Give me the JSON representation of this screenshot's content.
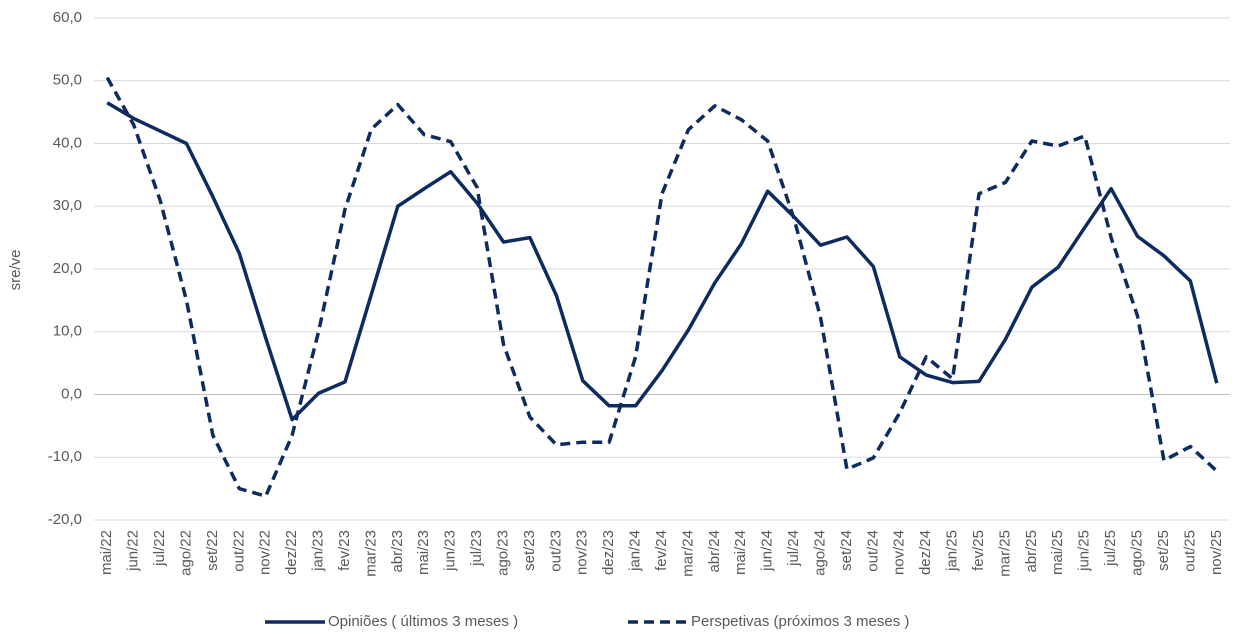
{
  "chart_data": {
    "type": "line",
    "y_label": "sre/ve",
    "categories": [
      "mai/22",
      "jun/22",
      "jul/22",
      "ago/22",
      "set/22",
      "out/22",
      "nov/22",
      "dez/22",
      "jan/23",
      "fev/23",
      "mar/23",
      "abr/23",
      "mai/23",
      "jun/23",
      "jul/23",
      "ago/23",
      "set/23",
      "out/23",
      "nov/23",
      "dez/23",
      "jan/24",
      "fev/24",
      "mar/24",
      "abr/24",
      "mai/24",
      "jun/24",
      "jul/24",
      "ago/24",
      "set/24",
      "out/24",
      "nov/24",
      "dez/24",
      "jan/25",
      "fev/25",
      "mar/25",
      "abr/25",
      "mai/25",
      "jun/25",
      "jul/25",
      "ago/25",
      "set/25",
      "out/25",
      "nov/25"
    ],
    "series": [
      {
        "name": "Opiniões ( últimos 3 meses )",
        "color": "#0d2b5e",
        "line_style": "solid",
        "values": [
          46.5,
          44,
          42,
          40,
          31.5,
          22.5,
          9,
          -4,
          0.2,
          2,
          16,
          30,
          32.8,
          35.5,
          30.5,
          24.3,
          25,
          15.8,
          2.2,
          -1.8,
          -1.8,
          3.8,
          10.3,
          17.8,
          24,
          32.4,
          28.3,
          23.8,
          25.1,
          20.4,
          6,
          3.1,
          1.9,
          2.1,
          8.8,
          17.1,
          20.3,
          26.6,
          32.8,
          25.2,
          22.1,
          18.1,
          1.8
        ]
      },
      {
        "name": "Perspetivas (próximos 3 meses )",
        "color": "#0d2b5e",
        "line_style": "dashed",
        "values": [
          50.5,
          43,
          31,
          15,
          -6.5,
          -15,
          -16.2,
          -6.5,
          10,
          29.5,
          42.3,
          46.2,
          41.4,
          40.3,
          33,
          8,
          -3.6,
          -8,
          -7.6,
          -7.6,
          6,
          32,
          42.2,
          46,
          43.8,
          40.4,
          28,
          12.3,
          -11.9,
          -10.1,
          -2.9,
          6,
          2.5,
          32,
          33.8,
          40.4,
          39.6,
          41.2,
          25,
          12.5,
          -10.5,
          -8.3,
          -12.2
        ]
      }
    ],
    "ylim": [
      -20,
      60
    ],
    "yticks": [
      {
        "value": -20,
        "label": "-20,0"
      },
      {
        "value": -10,
        "label": "-10,0"
      },
      {
        "value": 0,
        "label": "0,0"
      },
      {
        "value": 10,
        "label": "10,0"
      },
      {
        "value": 20,
        "label": "20,0"
      },
      {
        "value": 30,
        "label": "30,0"
      },
      {
        "value": 40,
        "label": "40,0"
      },
      {
        "value": 50,
        "label": "50,0"
      },
      {
        "value": 60,
        "label": "60,0"
      }
    ],
    "grid": true,
    "legend": "bottom"
  }
}
